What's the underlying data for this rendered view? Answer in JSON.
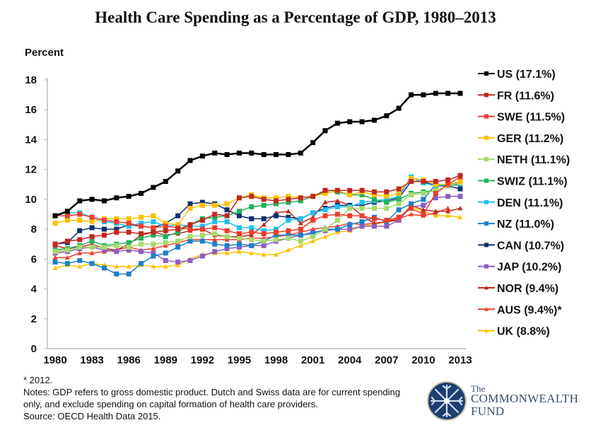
{
  "chart_data": {
    "type": "line",
    "title": "Health Care Spending as a Percentage of GDP, 1980–2013",
    "ylabel": "Percent",
    "xlabel": "",
    "ylim": [
      0,
      18
    ],
    "yticks": [
      "0",
      "2",
      "4",
      "6",
      "8",
      "10",
      "12",
      "14",
      "16",
      "18"
    ],
    "xticks": [
      "1980",
      "1983",
      "1986",
      "1989",
      "1992",
      "1995",
      "1998",
      "2001",
      "2004",
      "2007",
      "2010",
      "2013"
    ],
    "x": [
      1980,
      1981,
      1982,
      1983,
      1984,
      1985,
      1986,
      1987,
      1988,
      1989,
      1990,
      1991,
      1992,
      1993,
      1994,
      1995,
      1996,
      1997,
      1998,
      1999,
      2000,
      2001,
      2002,
      2003,
      2004,
      2005,
      2006,
      2007,
      2008,
      2009,
      2010,
      2011,
      2012,
      2013
    ],
    "grid": false,
    "legend": "right",
    "series": [
      {
        "name": "US (17.1%)",
        "color": "#000000",
        "marker": "square",
        "values": [
          8.9,
          9.2,
          9.9,
          10.0,
          9.9,
          10.1,
          10.2,
          10.4,
          10.8,
          11.2,
          11.9,
          12.6,
          12.9,
          13.1,
          13.0,
          13.1,
          13.1,
          13.0,
          13.0,
          13.0,
          13.1,
          13.8,
          14.6,
          15.1,
          15.2,
          15.2,
          15.3,
          15.6,
          16.1,
          17.0,
          17.0,
          17.1,
          17.1,
          17.1
        ]
      },
      {
        "name": "FR (11.6%)",
        "color": "#c0281e",
        "marker": "square",
        "values": [
          7.0,
          7.2,
          7.3,
          7.5,
          7.6,
          7.8,
          7.8,
          7.7,
          7.8,
          7.9,
          8.0,
          8.3,
          8.6,
          9.0,
          8.9,
          10.1,
          10.2,
          10.0,
          9.9,
          10.0,
          10.1,
          10.2,
          10.6,
          10.6,
          10.6,
          10.6,
          10.5,
          10.5,
          10.7,
          11.2,
          11.2,
          11.2,
          11.3,
          11.6
        ]
      },
      {
        "name": "SWE (11.5%)",
        "color": "#f03c2a",
        "marker": "square",
        "values": [
          8.9,
          8.9,
          9.0,
          8.8,
          8.6,
          8.5,
          8.4,
          8.2,
          8.1,
          8.2,
          8.1,
          8.0,
          8.0,
          8.1,
          7.9,
          7.7,
          7.8,
          7.7,
          7.8,
          7.9,
          8.0,
          8.6,
          8.9,
          9.0,
          8.9,
          8.9,
          8.7,
          8.6,
          8.8,
          9.4,
          9.0,
          10.4,
          11.0,
          11.5
        ]
      },
      {
        "name": "GER (11.2%)",
        "color": "#ffc000",
        "marker": "square",
        "values": [
          8.4,
          8.6,
          8.6,
          8.5,
          8.7,
          8.7,
          8.7,
          8.8,
          8.9,
          8.4,
          8.3,
          9.4,
          9.6,
          9.6,
          9.7,
          10.1,
          10.3,
          10.1,
          10.1,
          10.2,
          10.1,
          10.2,
          10.4,
          10.6,
          10.3,
          10.5,
          10.3,
          10.2,
          10.4,
          11.4,
          11.3,
          11.0,
          11.0,
          11.2
        ]
      },
      {
        "name": "NETH (11.1%)",
        "color": "#a6d96a",
        "marker": "square",
        "values": [
          6.5,
          6.6,
          6.8,
          6.8,
          6.8,
          6.9,
          6.8,
          7.0,
          7.0,
          7.1,
          7.2,
          7.5,
          7.6,
          7.7,
          7.5,
          7.4,
          7.3,
          7.2,
          7.3,
          7.4,
          7.2,
          7.5,
          8.0,
          8.6,
          9.4,
          9.4,
          9.4,
          9.4,
          9.7,
          10.3,
          10.4,
          10.6,
          10.9,
          11.1
        ]
      },
      {
        "name": "SWIZ (11.1%)",
        "color": "#1fb25a",
        "marker": "square",
        "values": [
          6.6,
          6.7,
          6.9,
          7.2,
          6.9,
          7.0,
          7.1,
          7.4,
          7.6,
          7.5,
          7.8,
          8.3,
          8.7,
          8.8,
          8.9,
          9.2,
          9.5,
          9.6,
          9.7,
          9.8,
          9.9,
          10.2,
          10.5,
          10.5,
          10.3,
          10.3,
          10.0,
          9.8,
          10.0,
          10.4,
          10.5,
          10.6,
          10.9,
          11.1
        ]
      },
      {
        "name": "DEN (11.1%)",
        "color": "#1ec0f0",
        "marker": "square",
        "values": [
          8.9,
          9.1,
          9.1,
          8.8,
          8.5,
          8.4,
          8.2,
          8.4,
          8.5,
          8.2,
          8.3,
          8.2,
          8.2,
          8.5,
          8.5,
          8.1,
          8.1,
          7.9,
          8.0,
          8.6,
          8.7,
          9.1,
          9.3,
          9.5,
          9.5,
          9.8,
          9.9,
          10.0,
          10.2,
          11.5,
          11.1,
          10.9,
          11.0,
          11.1
        ]
      },
      {
        "name": "NZ (11.0%)",
        "color": "#1f7fc8",
        "marker": "square",
        "values": [
          5.8,
          5.7,
          5.9,
          5.7,
          5.4,
          5.0,
          5.0,
          5.7,
          6.2,
          6.4,
          6.8,
          7.2,
          7.2,
          7.0,
          6.9,
          7.0,
          6.9,
          7.2,
          7.6,
          7.6,
          7.6,
          7.7,
          8.0,
          8.0,
          8.3,
          8.5,
          8.8,
          8.5,
          9.3,
          9.7,
          10.0,
          11.0,
          10.9,
          11.0
        ]
      },
      {
        "name": "CAN (10.7%)",
        "color": "#0d2f6e",
        "marker": "square",
        "values": [
          7.0,
          7.1,
          7.9,
          8.1,
          8.0,
          8.0,
          8.3,
          8.2,
          8.1,
          8.4,
          8.9,
          9.7,
          9.8,
          9.7,
          9.3,
          8.9,
          8.7,
          8.7,
          8.9,
          8.8,
          8.7,
          9.1,
          9.4,
          9.6,
          9.6,
          9.6,
          9.8,
          9.9,
          10.1,
          11.2,
          11.2,
          10.9,
          10.9,
          10.7
        ]
      },
      {
        "name": "JAP (10.2%)",
        "color": "#8e5cc2",
        "marker": "square",
        "values": [
          6.4,
          6.5,
          6.7,
          6.8,
          6.6,
          6.5,
          6.6,
          6.5,
          6.4,
          5.9,
          5.8,
          5.9,
          6.2,
          6.5,
          6.7,
          6.8,
          6.9,
          6.9,
          7.2,
          7.4,
          7.6,
          7.8,
          7.9,
          8.0,
          8.0,
          8.2,
          8.2,
          8.2,
          8.6,
          9.5,
          9.6,
          10.1,
          10.2,
          10.2
        ]
      },
      {
        "name": "NOR (9.4%)",
        "color": "#c0281e",
        "marker": "triangle",
        "values": [
          6.9,
          6.7,
          6.8,
          7.0,
          6.7,
          6.6,
          7.0,
          7.6,
          7.8,
          7.6,
          7.7,
          7.9,
          8.0,
          7.6,
          7.5,
          7.5,
          7.6,
          8.3,
          9.1,
          9.2,
          8.4,
          8.8,
          9.8,
          9.9,
          9.6,
          8.9,
          8.4,
          8.5,
          8.6,
          9.6,
          9.3,
          9.2,
          9.2,
          9.4
        ]
      },
      {
        "name": "AUS (9.4%)*",
        "color": "#f03c2a",
        "marker": "triangle",
        "values": [
          6.1,
          6.1,
          6.4,
          6.4,
          6.5,
          6.6,
          6.8,
          6.6,
          6.7,
          6.9,
          7.1,
          7.3,
          7.3,
          7.3,
          7.3,
          7.3,
          7.4,
          7.4,
          7.5,
          7.6,
          7.8,
          8.0,
          8.1,
          8.2,
          8.4,
          8.3,
          8.4,
          8.5,
          8.7,
          9.0,
          8.9,
          9.1,
          9.4,
          null
        ]
      },
      {
        "name": "UK (8.8%)",
        "color": "#ffc000",
        "marker": "triangle",
        "values": [
          5.4,
          5.6,
          5.5,
          5.7,
          5.6,
          5.5,
          5.5,
          5.6,
          5.5,
          5.5,
          5.6,
          6.0,
          6.3,
          6.4,
          6.4,
          6.5,
          6.4,
          6.3,
          6.3,
          6.6,
          6.9,
          7.2,
          7.5,
          7.8,
          7.9,
          8.2,
          8.3,
          8.5,
          8.8,
          9.5,
          9.2,
          8.9,
          8.9,
          8.8
        ]
      }
    ]
  },
  "notes": {
    "asterisk": "* 2012.",
    "line1": "Notes: GDP refers to gross domestic product. Dutch and Swiss data are for current spending",
    "line2": "only, and exclude spending on capital formation of health care providers.",
    "source": "Source: OECD Health Data 2015."
  },
  "logo": {
    "the": "The",
    "name1": "COMMONWEALTH",
    "name2": "FUND",
    "color": "#1c3f70"
  }
}
